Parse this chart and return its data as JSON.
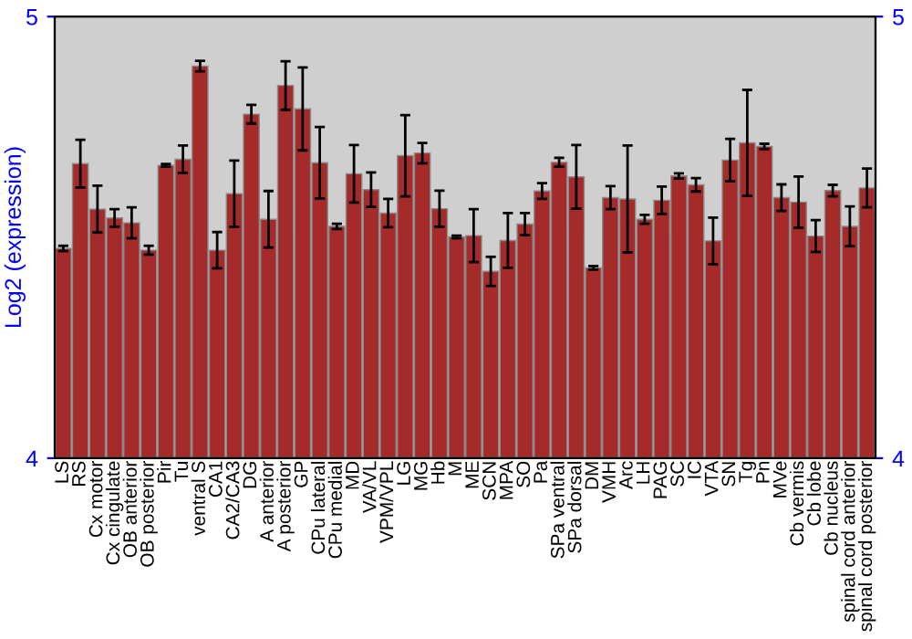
{
  "chart_data": {
    "type": "bar",
    "ylabel": "Log2 (expression)",
    "categories": [
      "LS",
      "RS",
      "Cx motor",
      "Cx cingulate",
      "OB anterior",
      "OB posterior",
      "Pir",
      "Tu",
      "ventral S",
      "CA1",
      "CA2/CA3",
      "DG",
      "A anterior",
      "A posterior",
      "GP",
      "CPu lateral",
      "CPu medial",
      "MD",
      "VA/VL",
      "VPM/VPL",
      "LG",
      "MG",
      "Hb",
      "M",
      "ME",
      "SCN",
      "MPA",
      "SO",
      "Pa",
      "SPa ventral",
      "SPa dorsal",
      "DM",
      "VMH",
      "Arc",
      "LH",
      "PAG",
      "SC",
      "IC",
      "VTA",
      "SN",
      "Tg",
      "Pn",
      "MVe",
      "Cb vermis",
      "Cb lobe",
      "Cb nucleus",
      "spinal cord anterior",
      "spinal cord posterior"
    ],
    "values": [
      4.475,
      4.667,
      4.564,
      4.544,
      4.533,
      4.471,
      4.663,
      4.677,
      4.888,
      4.471,
      4.599,
      4.779,
      4.541,
      4.844,
      4.791,
      4.669,
      4.525,
      4.644,
      4.608,
      4.555,
      4.685,
      4.691,
      4.565,
      4.501,
      4.504,
      4.423,
      4.493,
      4.53,
      4.605,
      4.67,
      4.637,
      4.431,
      4.59,
      4.587,
      4.541,
      4.584,
      4.639,
      4.619,
      4.492,
      4.675,
      4.714,
      4.706,
      4.59,
      4.58,
      4.503,
      4.606,
      4.525,
      4.612
    ],
    "errors": [
      0.006,
      0.054,
      0.053,
      0.02,
      0.035,
      0.01,
      0.003,
      0.031,
      0.012,
      0.041,
      0.075,
      0.021,
      0.064,
      0.055,
      0.094,
      0.081,
      0.006,
      0.065,
      0.039,
      0.032,
      0.092,
      0.023,
      0.041,
      0.003,
      0.06,
      0.033,
      0.062,
      0.025,
      0.018,
      0.01,
      0.072,
      0.004,
      0.026,
      0.121,
      0.01,
      0.031,
      0.006,
      0.015,
      0.053,
      0.048,
      0.12,
      0.006,
      0.03,
      0.058,
      0.036,
      0.013,
      0.045,
      0.044
    ],
    "color": "#a52a2a",
    "ylim": [
      4,
      5
    ],
    "yticks": [
      4,
      5
    ],
    "y2lim": [
      4,
      5
    ],
    "y2ticks": [
      4,
      5
    ],
    "grid": false,
    "legend": false
  }
}
